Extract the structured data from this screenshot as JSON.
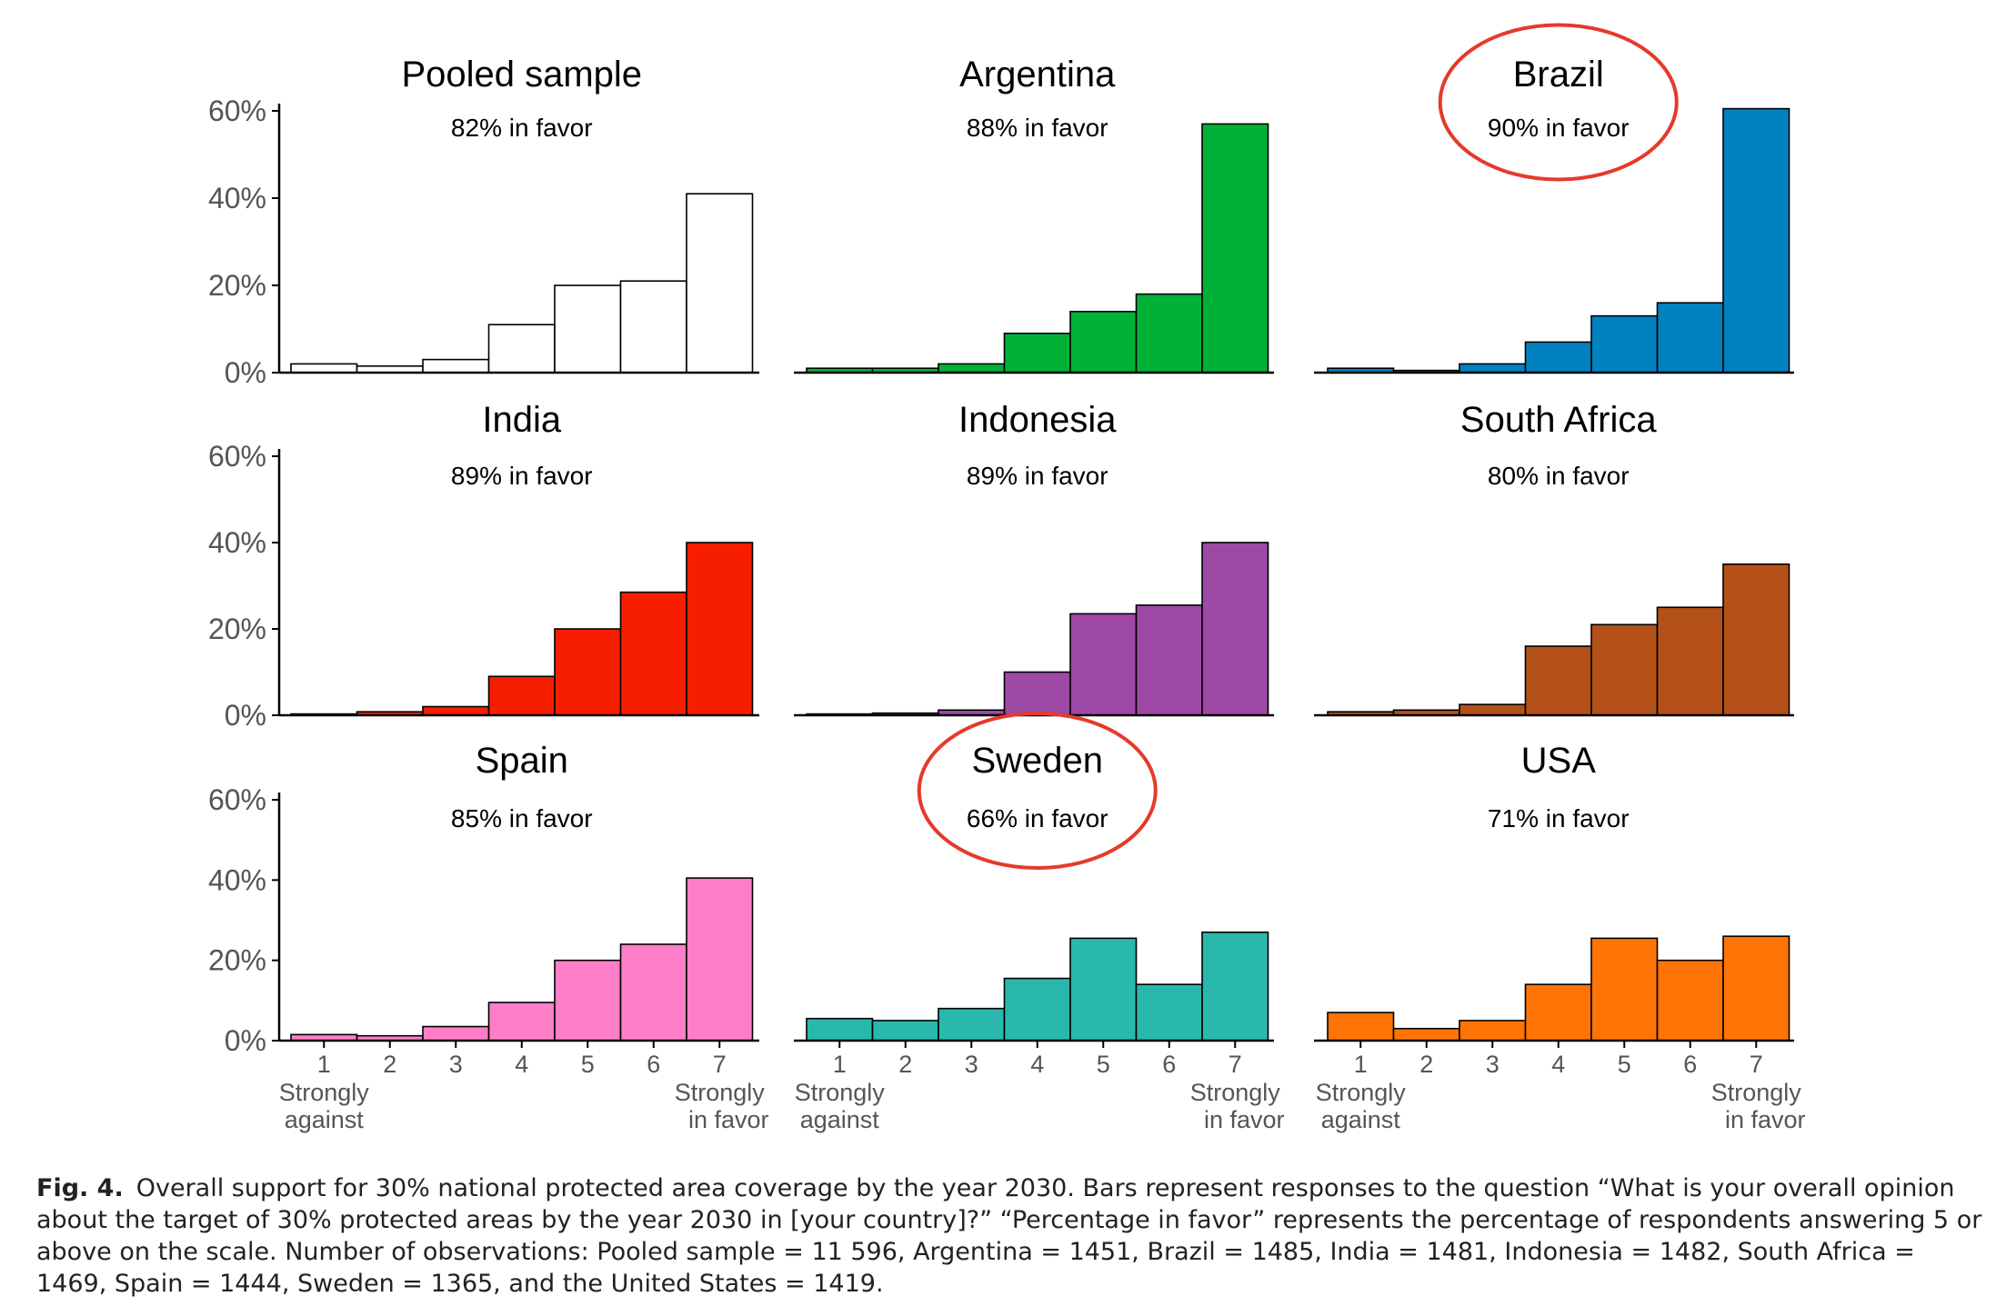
{
  "chart_data": [
    {
      "type": "bar",
      "title": "Pooled sample",
      "subtitle": "82% in favor",
      "color": "#ffffff",
      "categories": [
        "1",
        "2",
        "3",
        "4",
        "5",
        "6",
        "7"
      ],
      "values": [
        2,
        1.5,
        3,
        11,
        20,
        21,
        41
      ],
      "ylim": [
        0,
        60
      ],
      "yticks": [
        "0%",
        "20%",
        "40%",
        "60%"
      ],
      "highlight": false
    },
    {
      "type": "bar",
      "title": "Argentina",
      "subtitle": "88% in favor",
      "color": "#00b138",
      "categories": [
        "1",
        "2",
        "3",
        "4",
        "5",
        "6",
        "7"
      ],
      "values": [
        1,
        1,
        2,
        9,
        14,
        18,
        57
      ],
      "ylim": [
        0,
        60
      ],
      "highlight": false
    },
    {
      "type": "bar",
      "title": "Brazil",
      "subtitle": "90% in favor",
      "color": "#0082c0",
      "categories": [
        "1",
        "2",
        "3",
        "4",
        "5",
        "6",
        "7"
      ],
      "values": [
        1,
        0.5,
        2,
        7,
        13,
        16,
        60.5
      ],
      "ylim": [
        0,
        60
      ],
      "highlight": true
    },
    {
      "type": "bar",
      "title": "India",
      "subtitle": "89% in favor",
      "color": "#f71e00",
      "categories": [
        "1",
        "2",
        "3",
        "4",
        "5",
        "6",
        "7"
      ],
      "values": [
        0.3,
        0.8,
        2,
        9,
        20,
        28.5,
        40
      ],
      "ylim": [
        0,
        60
      ],
      "yticks": [
        "0%",
        "20%",
        "40%",
        "60%"
      ],
      "highlight": false
    },
    {
      "type": "bar",
      "title": "Indonesia",
      "subtitle": "89% in favor",
      "color": "#9e49a6",
      "categories": [
        "1",
        "2",
        "3",
        "4",
        "5",
        "6",
        "7"
      ],
      "values": [
        0.3,
        0.5,
        1.2,
        10,
        23.5,
        25.5,
        40
      ],
      "ylim": [
        0,
        60
      ],
      "highlight": false
    },
    {
      "type": "bar",
      "title": "South Africa",
      "subtitle": "80% in favor",
      "color": "#b45118",
      "categories": [
        "1",
        "2",
        "3",
        "4",
        "5",
        "6",
        "7"
      ],
      "values": [
        0.8,
        1.2,
        2.5,
        16,
        21,
        25,
        35
      ],
      "ylim": [
        0,
        60
      ],
      "highlight": false
    },
    {
      "type": "bar",
      "title": "Spain",
      "subtitle": "85% in favor",
      "color": "#ff7ec8",
      "categories": [
        "1",
        "2",
        "3",
        "4",
        "5",
        "6",
        "7"
      ],
      "values": [
        1.5,
        1.2,
        3.5,
        9.5,
        20,
        24,
        40.5
      ],
      "ylim": [
        0,
        60
      ],
      "yticks": [
        "0%",
        "20%",
        "40%",
        "60%"
      ],
      "xlabel_left": "Strongly against",
      "xlabel_right": "Strongly in favor",
      "highlight": false
    },
    {
      "type": "bar",
      "title": "Sweden",
      "subtitle": "66% in favor",
      "color": "#2ab8ad",
      "categories": [
        "1",
        "2",
        "3",
        "4",
        "5",
        "6",
        "7"
      ],
      "values": [
        5.5,
        5,
        8,
        15.5,
        25.5,
        14,
        27
      ],
      "ylim": [
        0,
        60
      ],
      "xlabel_left": "Strongly against",
      "xlabel_right": "Strongly in favor",
      "highlight": true
    },
    {
      "type": "bar",
      "title": "USA",
      "subtitle": "71% in favor",
      "color": "#ff7404",
      "categories": [
        "1",
        "2",
        "3",
        "4",
        "5",
        "6",
        "7"
      ],
      "values": [
        7,
        3,
        5,
        14,
        25.5,
        20,
        26
      ],
      "ylim": [
        0,
        60
      ],
      "xlabel_left": "Strongly against",
      "xlabel_right": "Strongly in favor",
      "highlight": false
    }
  ],
  "colors": {
    "highlight_ring": "#e53a2a",
    "axis": "#000000",
    "tick_text": "#555555"
  },
  "caption": {
    "label": "Fig. 4.",
    "text": "Overall support for 30% national protected area coverage by the year 2030. Bars represent responses to the question “What is your overall opinion about the target of 30% protected areas by the year 2030 in [your country]?” “Percentage in favor” represents the percentage of respondents answering 5 or above on the scale. Number of observations: Pooled sample = 11 596, Argentina = 1451, Brazil = 1485, India = 1481, Indonesia = 1482, South Africa = 1469, Spain = 1444, Sweden = 1365, and the United States = 1419."
  }
}
